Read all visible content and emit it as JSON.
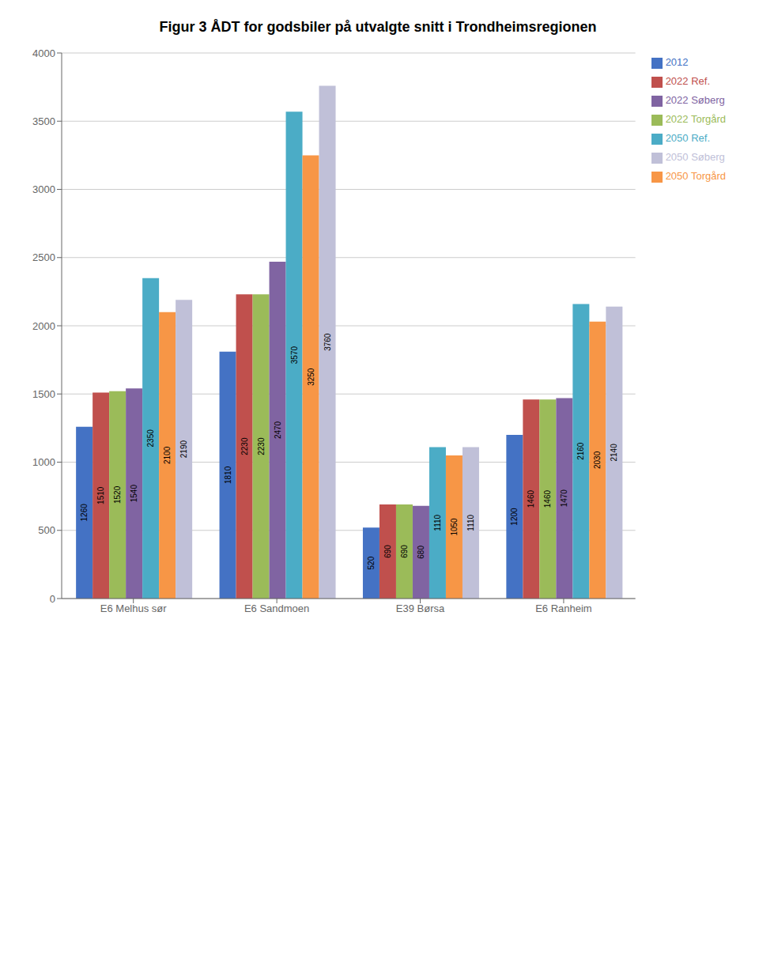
{
  "chart_data": {
    "type": "bar",
    "title": "Figur 3 ÅDT for godsbiler på utvalgte snitt i Trondheimsregionen",
    "categories": [
      "E6 Melhus sør",
      "E6 Sandmoen",
      "E39 Børsa",
      "E6 Ranheim"
    ],
    "series": [
      {
        "name": "2012",
        "color": "#4472C4",
        "values": [
          1260,
          1810,
          520,
          1200
        ]
      },
      {
        "name": "2022 Ref.",
        "color": "#C0504D",
        "values": [
          1510,
          2230,
          690,
          1460
        ]
      },
      {
        "name": "2022 Torgård",
        "color": "#9BBB59",
        "values": [
          1520,
          2230,
          690,
          1460
        ]
      },
      {
        "name": "2022 Søberg",
        "color": "#8064A2",
        "values": [
          1540,
          2470,
          680,
          1470
        ]
      },
      {
        "name": "2050 Ref.",
        "color": "#4BACC6",
        "values": [
          2350,
          3570,
          1110,
          2160
        ]
      },
      {
        "name": "2050 Torgård",
        "color": "#F79646",
        "values": [
          2100,
          3250,
          1050,
          2030
        ]
      },
      {
        "name": "2050 Søberg",
        "color": "#C0C0D8",
        "values": [
          2190,
          3760,
          1110,
          2140
        ]
      }
    ],
    "ylim": [
      0,
      4000
    ],
    "yticks": [
      0,
      500,
      1000,
      1500,
      2000,
      2500,
      3000,
      3500,
      4000
    ],
    "grid": true,
    "legend": "right",
    "data_labels": true
  }
}
